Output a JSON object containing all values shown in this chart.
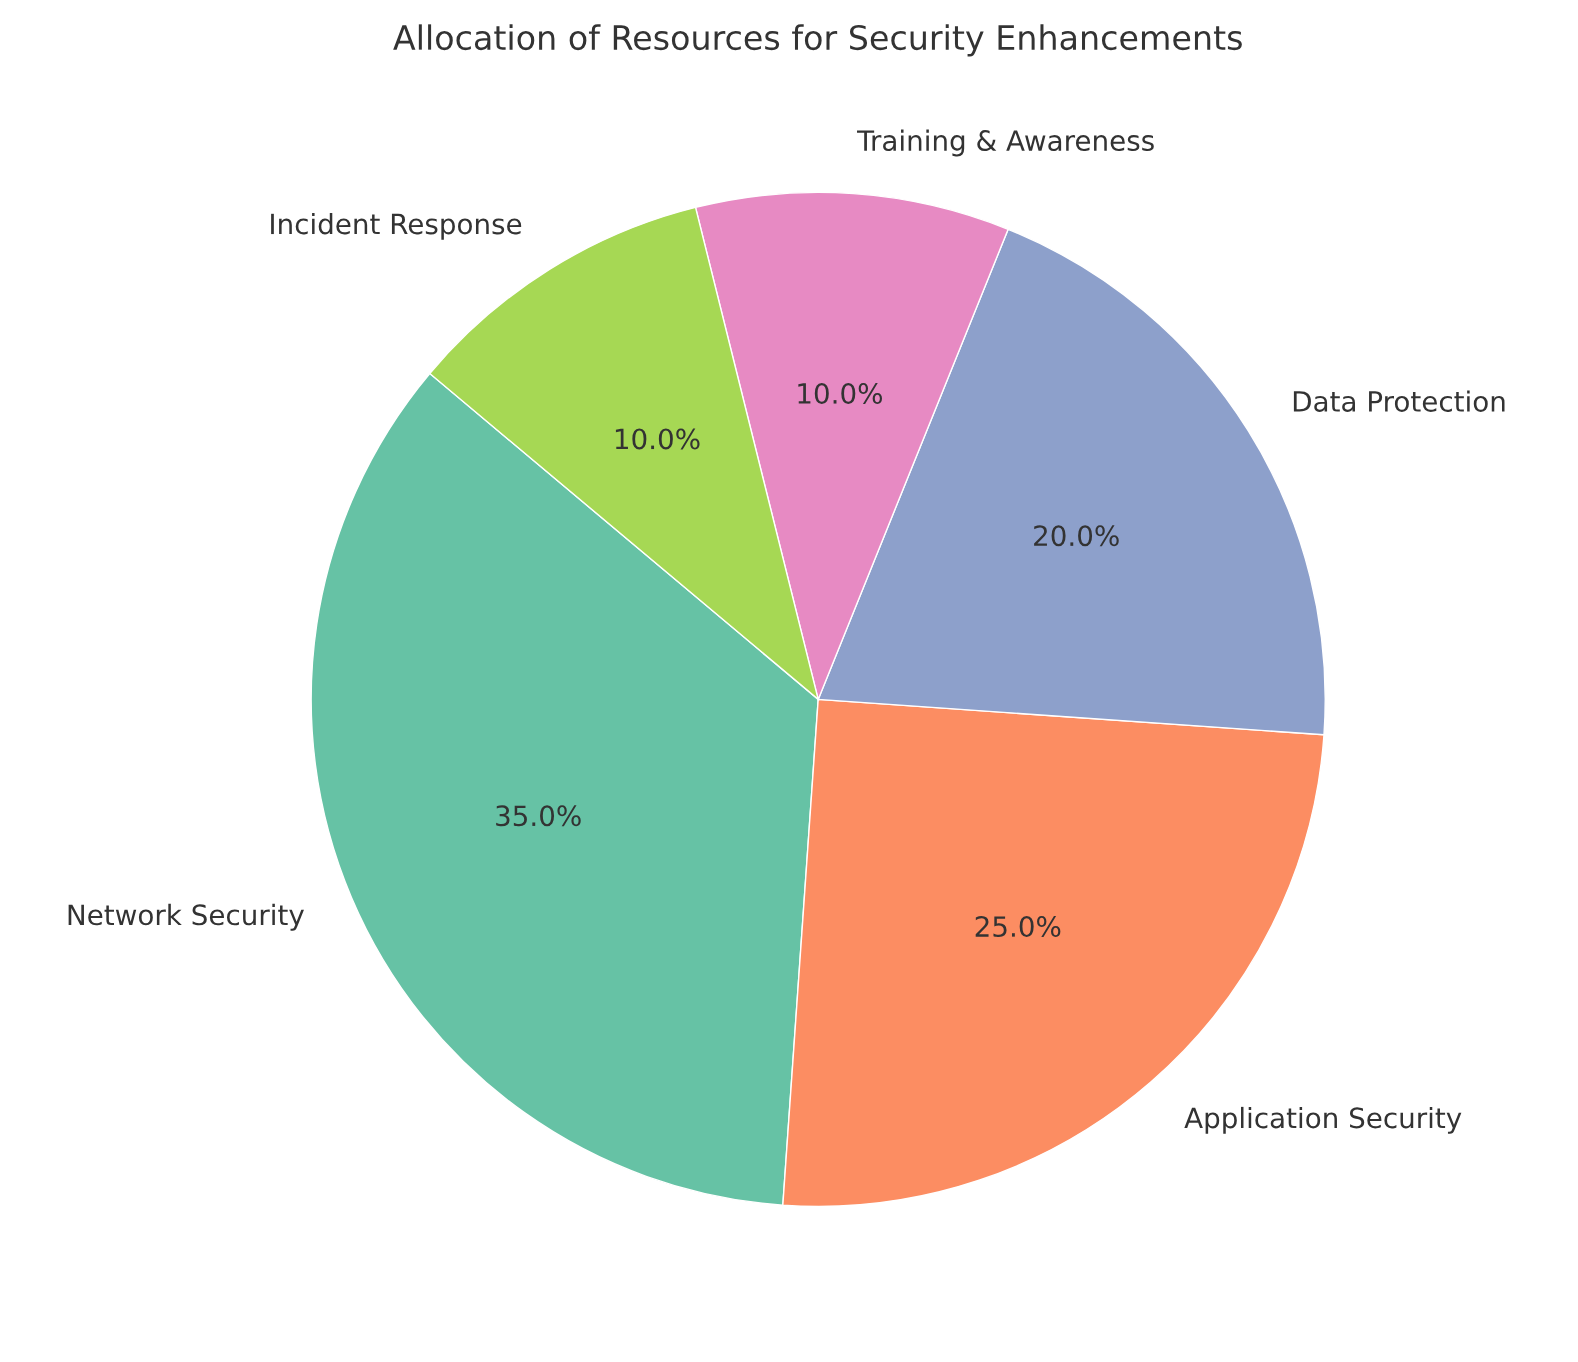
{
  "chart_data": {
    "type": "pie",
    "title": "Allocation of Resources for Security Enhancements",
    "categories": [
      "Network Security",
      "Application Security",
      "Data Protection",
      "Training & Awareness",
      "Incident Response"
    ],
    "values": [
      35,
      25,
      20,
      10,
      10
    ],
    "value_labels": [
      "35.0%",
      "25.0%",
      "20.0%",
      "10.0%",
      "10.0%"
    ],
    "colors": [
      "#66c2a5",
      "#fc8d62",
      "#8da0cb",
      "#e78ac3",
      "#a6d854"
    ]
  }
}
